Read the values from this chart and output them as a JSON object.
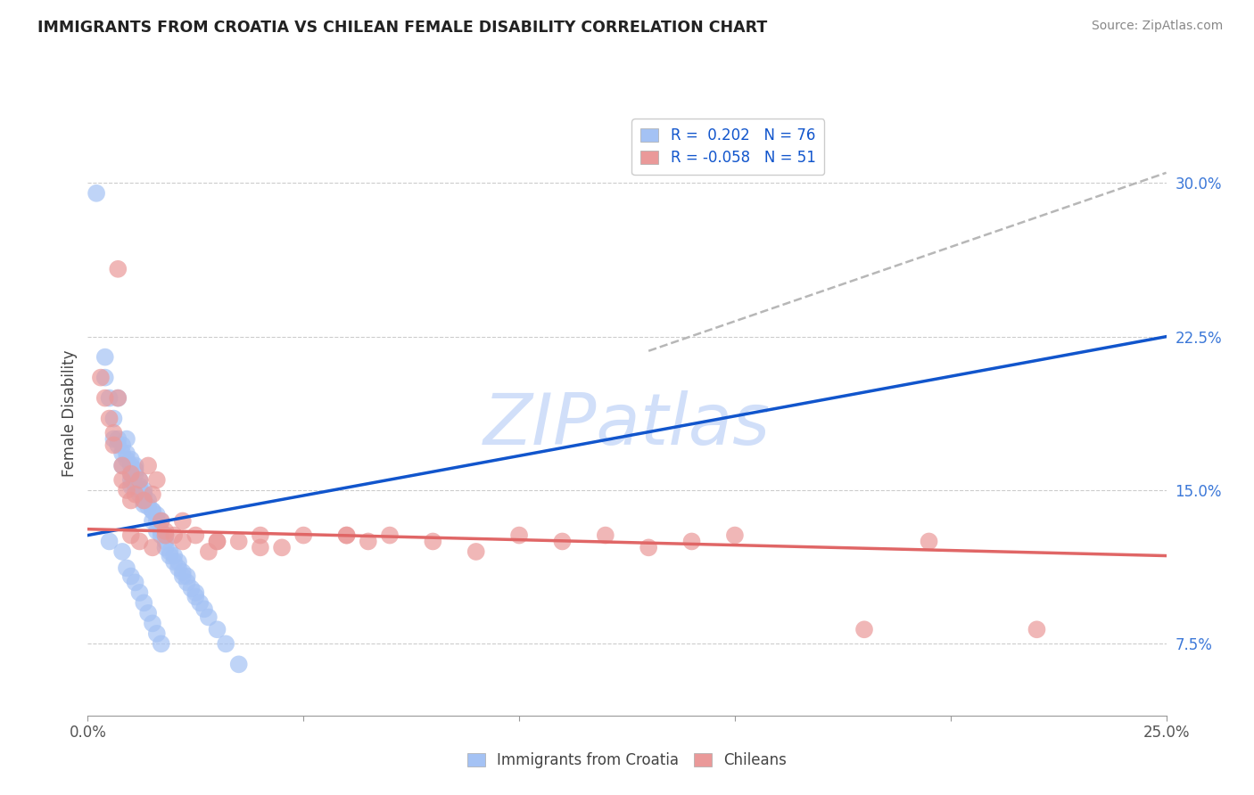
{
  "title": "IMMIGRANTS FROM CROATIA VS CHILEAN FEMALE DISABILITY CORRELATION CHART",
  "source": "Source: ZipAtlas.com",
  "ylabel": "Female Disability",
  "xlim": [
    0.0,
    0.25
  ],
  "ylim": [
    0.04,
    0.335
  ],
  "yticks": [
    0.075,
    0.15,
    0.225,
    0.3
  ],
  "ytick_labels": [
    "7.5%",
    "15.0%",
    "22.5%",
    "30.0%"
  ],
  "legend_r1": "R =  0.202",
  "legend_n1": "N = 76",
  "legend_r2": "R = -0.058",
  "legend_n2": "N = 51",
  "blue_color": "#a4c2f4",
  "pink_color": "#ea9999",
  "blue_line_color": "#1155cc",
  "pink_line_color": "#e06666",
  "trend_dash_color": "#b7b7b7",
  "watermark_color": "#c9daf8",
  "blue_trend_x0": 0.0,
  "blue_trend_y0": 0.128,
  "blue_trend_x1": 0.25,
  "blue_trend_y1": 0.225,
  "dash_trend_x0": 0.13,
  "dash_trend_y0": 0.218,
  "dash_trend_x1": 0.25,
  "dash_trend_y1": 0.305,
  "pink_trend_x0": 0.0,
  "pink_trend_y0": 0.131,
  "pink_trend_x1": 0.25,
  "pink_trend_y1": 0.118,
  "blue_x": [
    0.002,
    0.004,
    0.004,
    0.005,
    0.006,
    0.006,
    0.007,
    0.007,
    0.007,
    0.008,
    0.008,
    0.008,
    0.009,
    0.009,
    0.009,
    0.01,
    0.01,
    0.01,
    0.01,
    0.01,
    0.011,
    0.011,
    0.011,
    0.011,
    0.012,
    0.012,
    0.012,
    0.012,
    0.013,
    0.013,
    0.013,
    0.013,
    0.014,
    0.014,
    0.015,
    0.015,
    0.015,
    0.016,
    0.016,
    0.016,
    0.017,
    0.017,
    0.017,
    0.018,
    0.018,
    0.018,
    0.019,
    0.019,
    0.02,
    0.02,
    0.021,
    0.021,
    0.022,
    0.022,
    0.023,
    0.023,
    0.024,
    0.025,
    0.025,
    0.026,
    0.027,
    0.028,
    0.03,
    0.032,
    0.035,
    0.005,
    0.008,
    0.009,
    0.01,
    0.011,
    0.012,
    0.013,
    0.014,
    0.015,
    0.016,
    0.017
  ],
  "blue_y": [
    0.295,
    0.215,
    0.205,
    0.195,
    0.185,
    0.175,
    0.172,
    0.175,
    0.195,
    0.168,
    0.162,
    0.172,
    0.165,
    0.168,
    0.175,
    0.162,
    0.158,
    0.165,
    0.155,
    0.152,
    0.162,
    0.158,
    0.16,
    0.152,
    0.152,
    0.155,
    0.148,
    0.15,
    0.148,
    0.145,
    0.15,
    0.143,
    0.142,
    0.145,
    0.14,
    0.135,
    0.14,
    0.138,
    0.13,
    0.135,
    0.128,
    0.13,
    0.135,
    0.128,
    0.125,
    0.122,
    0.12,
    0.118,
    0.115,
    0.118,
    0.112,
    0.115,
    0.11,
    0.108,
    0.105,
    0.108,
    0.102,
    0.098,
    0.1,
    0.095,
    0.092,
    0.088,
    0.082,
    0.075,
    0.065,
    0.125,
    0.12,
    0.112,
    0.108,
    0.105,
    0.1,
    0.095,
    0.09,
    0.085,
    0.08,
    0.075
  ],
  "pink_x": [
    0.003,
    0.004,
    0.005,
    0.006,
    0.006,
    0.007,
    0.007,
    0.008,
    0.008,
    0.009,
    0.01,
    0.01,
    0.011,
    0.012,
    0.013,
    0.014,
    0.015,
    0.016,
    0.017,
    0.018,
    0.02,
    0.022,
    0.025,
    0.028,
    0.03,
    0.035,
    0.04,
    0.045,
    0.05,
    0.06,
    0.065,
    0.07,
    0.08,
    0.09,
    0.1,
    0.11,
    0.12,
    0.13,
    0.14,
    0.15,
    0.18,
    0.195,
    0.22,
    0.01,
    0.012,
    0.015,
    0.018,
    0.022,
    0.03,
    0.04,
    0.06
  ],
  "pink_y": [
    0.205,
    0.195,
    0.185,
    0.178,
    0.172,
    0.258,
    0.195,
    0.162,
    0.155,
    0.15,
    0.145,
    0.158,
    0.148,
    0.155,
    0.145,
    0.162,
    0.148,
    0.155,
    0.135,
    0.13,
    0.128,
    0.135,
    0.128,
    0.12,
    0.125,
    0.125,
    0.128,
    0.122,
    0.128,
    0.128,
    0.125,
    0.128,
    0.125,
    0.12,
    0.128,
    0.125,
    0.128,
    0.122,
    0.125,
    0.128,
    0.082,
    0.125,
    0.082,
    0.128,
    0.125,
    0.122,
    0.128,
    0.125,
    0.125,
    0.122,
    0.128
  ]
}
